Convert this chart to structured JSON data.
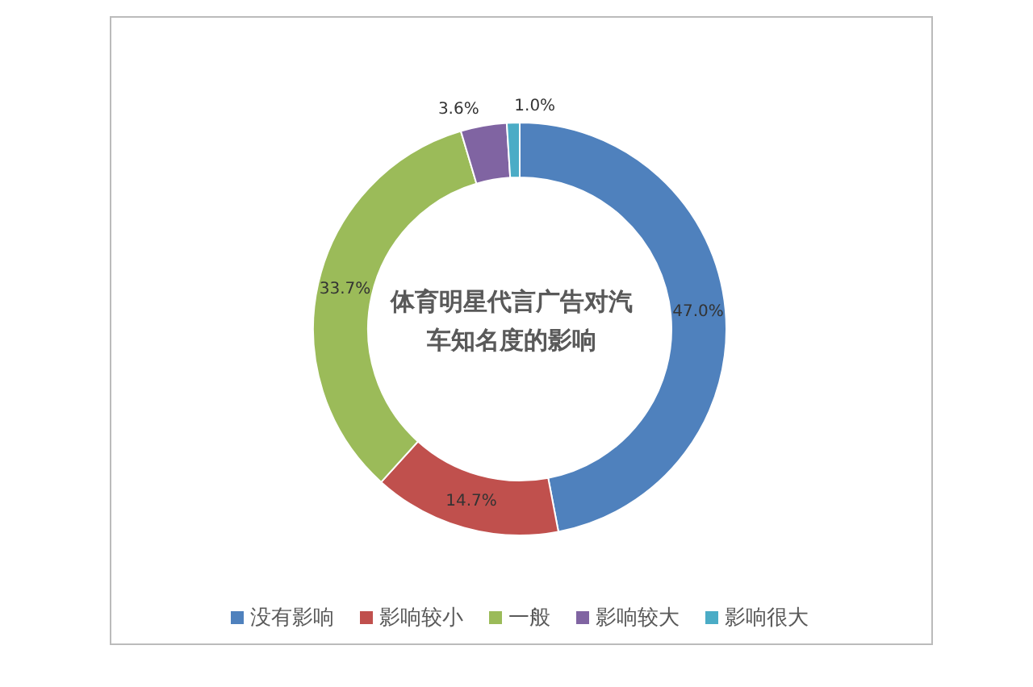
{
  "chart_data": {
    "type": "donut",
    "title": "体育明星代言广告对汽车知名度的影响",
    "categories": [
      "没有影响",
      "影响较小",
      "一般",
      "影响较大",
      "影响很大"
    ],
    "values": [
      47.0,
      14.7,
      33.7,
      3.6,
      1.0
    ],
    "colors": [
      "#4f81bd",
      "#c0504d",
      "#9bbb59",
      "#8064a2",
      "#4bacc6"
    ],
    "value_labels": [
      "47.0%",
      "14.7%",
      "33.7%",
      "3.6%",
      "1.0%"
    ],
    "legend": "bottom"
  }
}
